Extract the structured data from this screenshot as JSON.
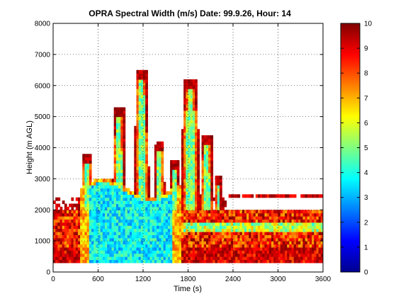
{
  "chart_data": {
    "type": "heatmap",
    "title": "OPRA Spectral Width (m/s)  Date: 99.9.26, Hour: 14",
    "xlabel": "Time (s)",
    "ylabel": "Height (m AGL)",
    "xlim": [
      0,
      3600
    ],
    "ylim": [
      0,
      8000
    ],
    "xticks": [
      0,
      600,
      1200,
      1800,
      2400,
      3000,
      3600
    ],
    "yticks": [
      0,
      1000,
      2000,
      3000,
      4000,
      5000,
      6000,
      7000,
      8000
    ],
    "grid": true,
    "colorbar": {
      "range": [
        0,
        10
      ],
      "ticks": [
        0,
        1,
        2,
        3,
        4,
        5,
        6,
        7,
        8,
        9,
        10
      ],
      "colormap": "jet"
    },
    "z_units": "m/s",
    "features": [
      {
        "desc": "low-level band",
        "x": [
          0,
          3600
        ],
        "height": [
          300,
          2000
        ],
        "value_range": [
          7,
          10
        ]
      },
      {
        "desc": "convective core",
        "x": [
          350,
          1700
        ],
        "height": [
          300,
          3000
        ],
        "value_range": [
          2.5,
          5
        ]
      },
      {
        "desc": "upper plume 1",
        "x": [
          900,
          1000
        ],
        "height_top": 5300
      },
      {
        "desc": "upper plume 2",
        "x": [
          1100,
          1250
        ],
        "height_top": 6500
      },
      {
        "desc": "upper plume 3",
        "x": [
          1750,
          2000
        ],
        "height_top": 6200
      },
      {
        "desc": "isolated band",
        "x": [
          2400,
          3600
        ],
        "height": [
          2400,
          2500
        ],
        "value_range": [
          8,
          10
        ]
      }
    ]
  }
}
